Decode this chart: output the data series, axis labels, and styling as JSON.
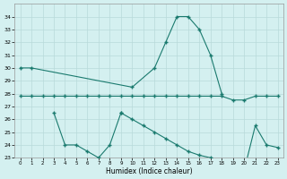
{
  "xlabel": "Humidex (Indice chaleur)",
  "color": "#1a7a6e",
  "bg_color": "#d4f0f0",
  "grid_color": "#b8dada",
  "ylim": [
    23,
    35
  ],
  "xlim": [
    -0.5,
    23.5
  ],
  "yticks": [
    23,
    24,
    25,
    26,
    27,
    28,
    29,
    30,
    31,
    32,
    33,
    34
  ],
  "xticks": [
    0,
    1,
    2,
    3,
    4,
    5,
    6,
    7,
    8,
    9,
    10,
    11,
    12,
    13,
    14,
    15,
    16,
    17,
    18,
    19,
    20,
    21,
    22,
    23
  ],
  "l1x": [
    0,
    1,
    10,
    12,
    13,
    14,
    15,
    16,
    17,
    18
  ],
  "l1y": [
    30,
    30,
    28.5,
    30,
    32,
    34,
    34,
    33,
    31,
    28
  ],
  "l2x": [
    0,
    1,
    2,
    3,
    4,
    5,
    6,
    7,
    8,
    9,
    10,
    11,
    12,
    13,
    14,
    15,
    16,
    17,
    18,
    19,
    20,
    21,
    22,
    23
  ],
  "l2y": [
    27.8,
    27.8,
    27.8,
    27.8,
    27.8,
    27.8,
    27.8,
    27.8,
    27.8,
    27.8,
    27.8,
    27.8,
    27.8,
    27.8,
    27.8,
    27.8,
    27.8,
    27.8,
    27.8,
    27.5,
    27.5,
    27.8,
    27.8,
    27.8
  ],
  "l3x": [
    3,
    4,
    5,
    6,
    7,
    8,
    9
  ],
  "l3y": [
    26.5,
    24.0,
    24.0,
    23.5,
    23.0,
    24.0,
    26.5
  ],
  "l4x": [
    9,
    10,
    11,
    12,
    13,
    14,
    15,
    16,
    17,
    18,
    19,
    20,
    21,
    22,
    23
  ],
  "l4y": [
    26.5,
    26.0,
    25.5,
    25.0,
    24.5,
    24.0,
    23.5,
    23.2,
    23.0,
    22.8,
    22.5,
    22.0,
    25.5,
    24.0,
    23.8
  ]
}
